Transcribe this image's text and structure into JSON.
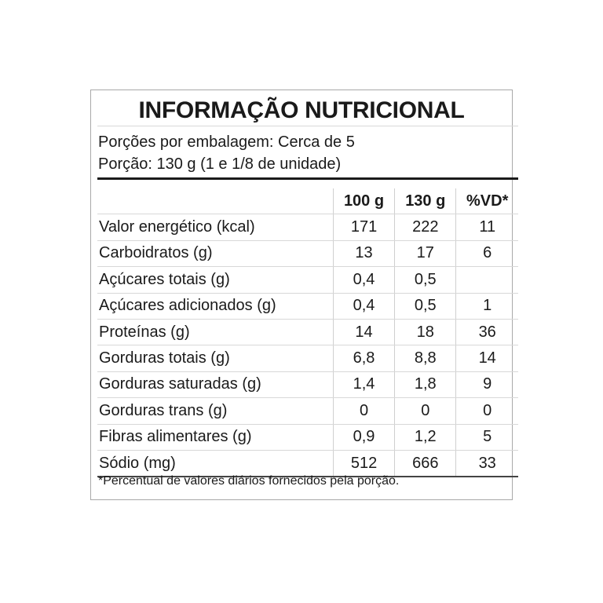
{
  "title": "INFORMAÇÃO NUTRICIONAL",
  "servings_per_package": "Porções por embalagem: Cerca de 5",
  "serving_size": "Porção: 130 g (1 e 1/8 de unidade)",
  "columns": [
    "",
    "100 g",
    "130 g",
    "%VD*"
  ],
  "rows": [
    {
      "label": "Valor energético (kcal)",
      "per100": "171",
      "perServing": "222",
      "vd": "11",
      "indent": 0
    },
    {
      "label": "Carboidratos (g)",
      "per100": "13",
      "perServing": "17",
      "vd": "6",
      "indent": 0
    },
    {
      "label": "Açúcares totais (g)",
      "per100": "0,4",
      "perServing": "0,5",
      "vd": "",
      "indent": 1
    },
    {
      "label": "Açúcares adicionados (g)",
      "per100": "0,4",
      "perServing": "0,5",
      "vd": "1",
      "indent": 2
    },
    {
      "label": "Proteínas (g)",
      "per100": "14",
      "perServing": "18",
      "vd": "36",
      "indent": 0
    },
    {
      "label": "Gorduras totais (g)",
      "per100": "6,8",
      "perServing": "8,8",
      "vd": "14",
      "indent": 0
    },
    {
      "label": "Gorduras saturadas (g)",
      "per100": "1,4",
      "perServing": "1,8",
      "vd": "9",
      "indent": 1
    },
    {
      "label": "Gorduras trans (g)",
      "per100": "0",
      "perServing": "0",
      "vd": "0",
      "indent": 1
    },
    {
      "label": "Fibras alimentares (g)",
      "per100": "0,9",
      "perServing": "1,2",
      "vd": "5",
      "indent": 0
    },
    {
      "label": "Sódio (mg)",
      "per100": "512",
      "perServing": "666",
      "vd": "33",
      "indent": 0
    }
  ],
  "footnote": "*Percentual de valores diários fornecidos pela porção."
}
